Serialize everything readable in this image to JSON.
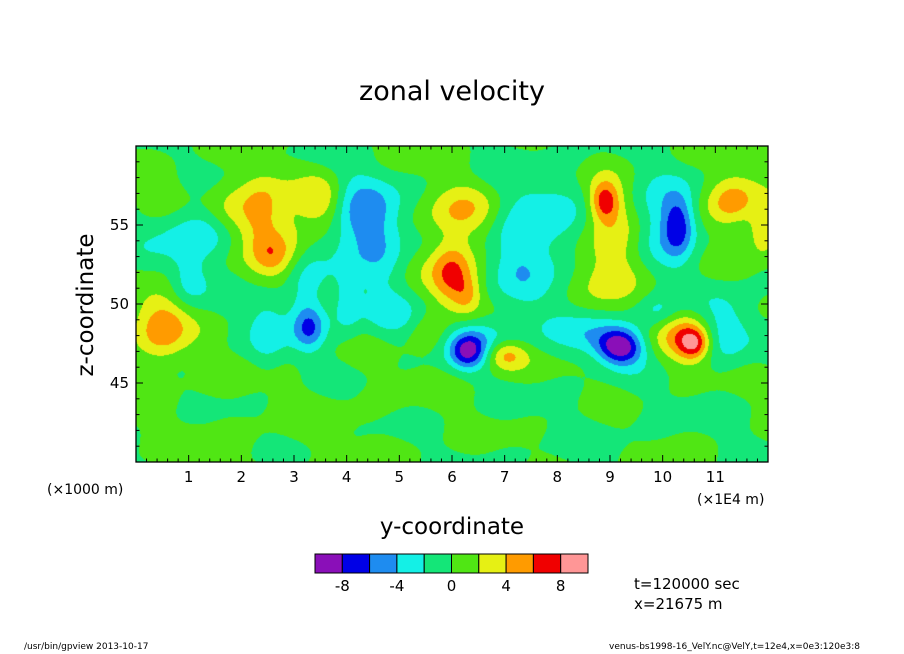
{
  "chart_data": {
    "type": "heatmap",
    "title": "zonal velocity",
    "xlabel": "y-coordinate",
    "ylabel": "z-coordinate",
    "x_unit_left": "(×1000 m)",
    "x_unit_right": "(×1E4 m)",
    "xlim": [
      0,
      12
    ],
    "ylim": [
      40,
      60
    ],
    "x_ticks": [
      "1",
      "2",
      "3",
      "4",
      "5",
      "6",
      "7",
      "8",
      "9",
      "10",
      "11"
    ],
    "y_ticks": [
      "45",
      "50",
      "55"
    ],
    "colorbar": {
      "levels": [
        -10,
        -8,
        -6,
        -4,
        -2,
        0,
        2,
        4,
        6,
        8,
        10
      ],
      "colors": [
        "#8a0fb8",
        "#0000e6",
        "#1e8cf0",
        "#14f0e6",
        "#14e678",
        "#50e614",
        "#e6f014",
        "#ff9b00",
        "#f00000",
        "#ff9696"
      ],
      "tick_labels": [
        "-8",
        "-4",
        "0",
        "4",
        "8"
      ],
      "tick_values": [
        -8,
        -4,
        0,
        4,
        8
      ]
    },
    "features": [
      {
        "x": 0.5,
        "z": 48.5,
        "sx": 0.35,
        "sz": 1.6,
        "v": 5.4
      },
      {
        "x": 1.0,
        "z": 51.5,
        "sx": 0.25,
        "sz": 1.2,
        "v": -3.0
      },
      {
        "x": 1.2,
        "z": 54.5,
        "sx": 0.6,
        "sz": 1.2,
        "v": -4.0
      },
      {
        "x": 1.8,
        "z": 55.5,
        "sx": 0.35,
        "sz": 1.2,
        "v": 3.2
      },
      {
        "x": 2.4,
        "z": 55.5,
        "sx": 0.3,
        "sz": 1.8,
        "v": 5.0
      },
      {
        "x": 2.6,
        "z": 53.0,
        "sx": 0.25,
        "sz": 1.0,
        "v": 3.0
      },
      {
        "x": 2.5,
        "z": 48.5,
        "sx": 0.25,
        "sz": 1.8,
        "v": -3.0
      },
      {
        "x": 3.0,
        "z": 54.0,
        "sx": 0.3,
        "sz": 2.0,
        "v": 3.0
      },
      {
        "x": 3.2,
        "z": 50.5,
        "sx": 0.3,
        "sz": 2.4,
        "v": -3.5
      },
      {
        "x": 3.3,
        "z": 48.5,
        "sx": 0.2,
        "sz": 0.9,
        "v": -4.0
      },
      {
        "x": 3.6,
        "z": 56.5,
        "sx": 0.3,
        "sz": 1.2,
        "v": 4.0
      },
      {
        "x": 4.2,
        "z": 55.5,
        "sx": 0.45,
        "sz": 1.8,
        "v": -5.0
      },
      {
        "x": 4.0,
        "z": 50.0,
        "sx": 0.2,
        "sz": 1.5,
        "v": -3.0
      },
      {
        "x": 4.7,
        "z": 53.5,
        "sx": 0.35,
        "sz": 2.4,
        "v": -2.8
      },
      {
        "x": 5.2,
        "z": 49.0,
        "sx": 0.6,
        "sz": 1.0,
        "v": -2.5
      },
      {
        "x": 5.5,
        "z": 48.5,
        "sx": 0.3,
        "sz": 1.0,
        "v": 2.8
      },
      {
        "x": 6.0,
        "z": 52.0,
        "sx": 0.3,
        "sz": 1.6,
        "v": 6.5
      },
      {
        "x": 6.3,
        "z": 50.5,
        "sx": 0.2,
        "sz": 0.9,
        "v": 3.0
      },
      {
        "x": 6.1,
        "z": 55.8,
        "sx": 0.5,
        "sz": 1.2,
        "v": 3.5
      },
      {
        "x": 6.3,
        "z": 47.0,
        "sx": 0.25,
        "sz": 0.8,
        "v": -7.0
      },
      {
        "x": 6.7,
        "z": 47.8,
        "sx": 0.5,
        "sz": 1.0,
        "v": -3.2
      },
      {
        "x": 7.0,
        "z": 46.8,
        "sx": 0.3,
        "sz": 0.7,
        "v": 5.6
      },
      {
        "x": 7.2,
        "z": 53.5,
        "sx": 0.35,
        "sz": 2.6,
        "v": -3.0
      },
      {
        "x": 7.9,
        "z": 54.5,
        "sx": 0.45,
        "sz": 2.6,
        "v": -3.0
      },
      {
        "x": 8.6,
        "z": 48.0,
        "sx": 0.5,
        "sz": 1.0,
        "v": -3.2
      },
      {
        "x": 9.2,
        "z": 47.3,
        "sx": 0.3,
        "sz": 0.8,
        "v": -9.0
      },
      {
        "x": 9.1,
        "z": 53.5,
        "sx": 0.45,
        "sz": 2.3,
        "v": 4.8
      },
      {
        "x": 8.9,
        "z": 56.5,
        "sx": 0.2,
        "sz": 0.9,
        "v": 6.5
      },
      {
        "x": 9.9,
        "z": 55.0,
        "sx": 0.5,
        "sz": 2.0,
        "v": -4.2
      },
      {
        "x": 10.3,
        "z": 55.0,
        "sx": 0.2,
        "sz": 1.3,
        "v": -5.5
      },
      {
        "x": 9.9,
        "z": 49.5,
        "sx": 0.3,
        "sz": 0.8,
        "v": -3.0
      },
      {
        "x": 10.4,
        "z": 48.0,
        "sx": 0.35,
        "sz": 1.2,
        "v": 4.5
      },
      {
        "x": 10.6,
        "z": 47.5,
        "sx": 0.2,
        "sz": 0.7,
        "v": 6.0
      },
      {
        "x": 11.2,
        "z": 48.5,
        "sx": 0.35,
        "sz": 1.6,
        "v": -3.2
      },
      {
        "x": 11.3,
        "z": 56.5,
        "sx": 0.35,
        "sz": 1.2,
        "v": 5.5
      },
      {
        "x": 11.9,
        "z": 54.5,
        "sx": 0.2,
        "sz": 1.0,
        "v": 4.2
      },
      {
        "x": 0.5,
        "z": 57.5,
        "sx": 0.8,
        "sz": 1.0,
        "v": 1.0
      },
      {
        "x": 3.0,
        "z": 43.0,
        "sx": 2.5,
        "sz": 3.0,
        "v": 0.5
      },
      {
        "x": 9.0,
        "z": 42.0,
        "sx": 2.5,
        "sz": 2.0,
        "v": -0.3
      }
    ]
  },
  "info": {
    "time": "t=120000 sec",
    "position": "x=21675 m"
  },
  "footer": {
    "left": "/usr/bin/gpview   2013-10-17",
    "right": "venus-bs1998-16_VelY.nc@VelY,t=12e4,x=0e3:120e3:8"
  }
}
